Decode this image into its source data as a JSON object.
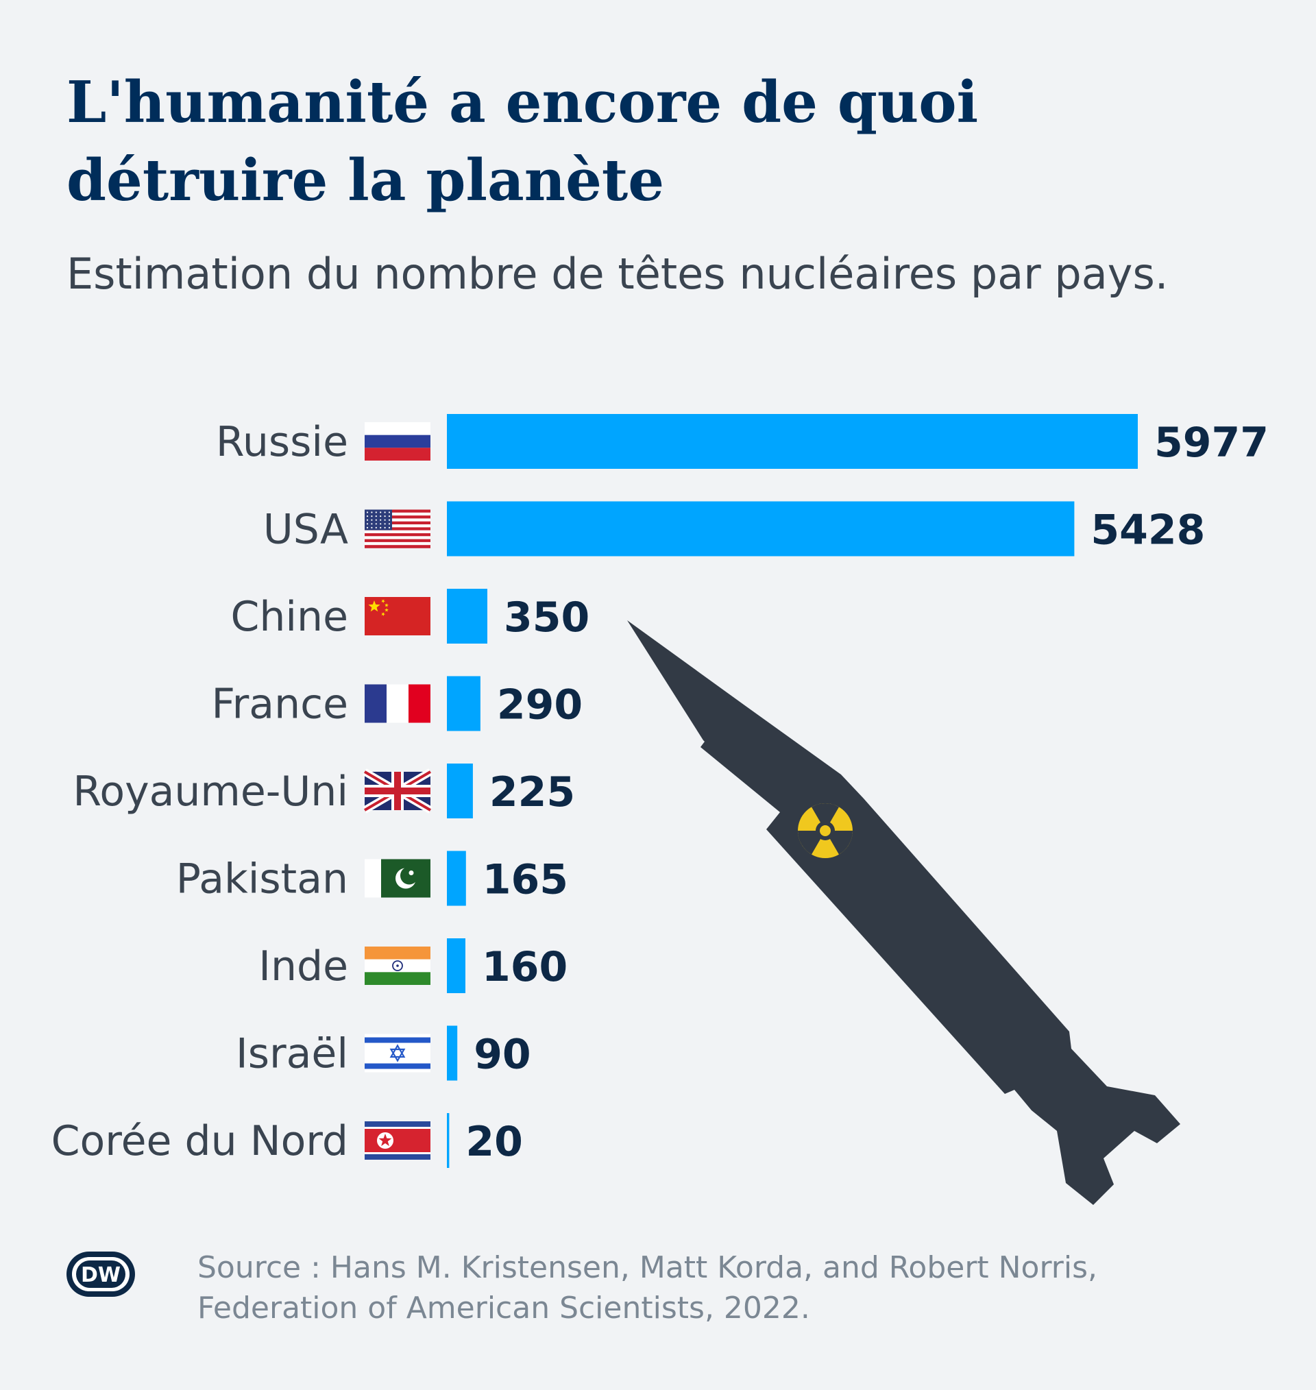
{
  "title": {
    "line1": "L'humanité a encore de quoi",
    "line2": "détruire la planète"
  },
  "subtitle": "Estimation du nombre de têtes nucléaires par pays.",
  "colors": {
    "bar": "#00a5ff",
    "title": "#002d5a",
    "value": "#0d2846",
    "missile": "#323a45",
    "radiation": "#f0c81e"
  },
  "chart_data": {
    "type": "bar",
    "orientation": "horizontal",
    "categories": [
      "Russie",
      "USA",
      "Chine",
      "France",
      "Royaume-Uni",
      "Pakistan",
      "Inde",
      "Israël",
      "Corée du Nord"
    ],
    "flags": [
      "russia-flag",
      "usa-flag",
      "china-flag",
      "france-flag",
      "uk-flag",
      "pakistan-flag",
      "india-flag",
      "israel-flag",
      "north-korea-flag"
    ],
    "values": [
      5977,
      5428,
      350,
      290,
      225,
      165,
      160,
      90,
      20
    ],
    "value_labels": [
      "5977",
      "5428",
      "350",
      "290",
      "225",
      "165",
      "160",
      "90",
      "20"
    ],
    "data_labels": true,
    "grid": false,
    "xlim": [
      0,
      5977
    ]
  },
  "decoration": {
    "missile_icon": "missile-icon",
    "radiation_icon": "radiation-icon"
  },
  "footer": {
    "logo": "DW",
    "source_line1": "Source : Hans M. Kristensen, Matt Korda, and Robert Norris,",
    "source_line2": "Federation of American Scientists, 2022."
  }
}
